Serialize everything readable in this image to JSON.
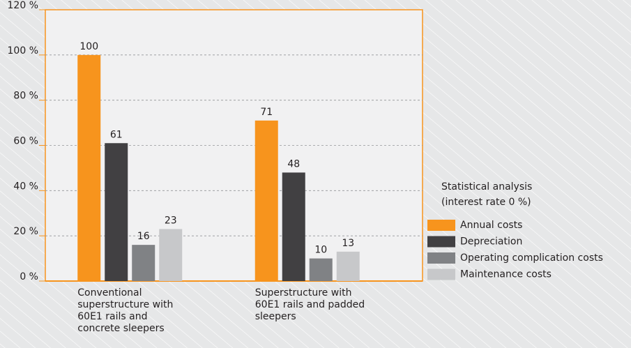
{
  "chart_data": {
    "type": "bar",
    "categories": [
      "Conventional superstructure with 60E1 rails and concrete sleepers",
      "Superstructure with 60E1 rails and padded sleepers"
    ],
    "series": [
      {
        "name": "Annual costs",
        "color": "#f7941d",
        "values": [
          100,
          71
        ]
      },
      {
        "name": "Depreciation",
        "color": "#414042",
        "values": [
          61,
          48
        ]
      },
      {
        "name": "Operating complication costs",
        "color": "#808285",
        "values": [
          16,
          10
        ]
      },
      {
        "name": "Maintenance costs",
        "color": "#c7c8ca",
        "values": [
          23,
          13
        ]
      }
    ],
    "legend_title": [
      "Statistical analysis",
      "(interest rate 0 %)"
    ],
    "ylim": [
      0,
      120
    ],
    "yticks": [
      {
        "value": 0,
        "label": "0 %"
      },
      {
        "value": 20,
        "label": "20 %"
      },
      {
        "value": 40,
        "label": "40 %"
      },
      {
        "value": 60,
        "label": "60 %"
      },
      {
        "value": 80,
        "label": "80 %"
      },
      {
        "value": 100,
        "label": "100 %"
      },
      {
        "value": 120,
        "label": "120 %"
      }
    ],
    "grid": true,
    "legend": "right"
  }
}
